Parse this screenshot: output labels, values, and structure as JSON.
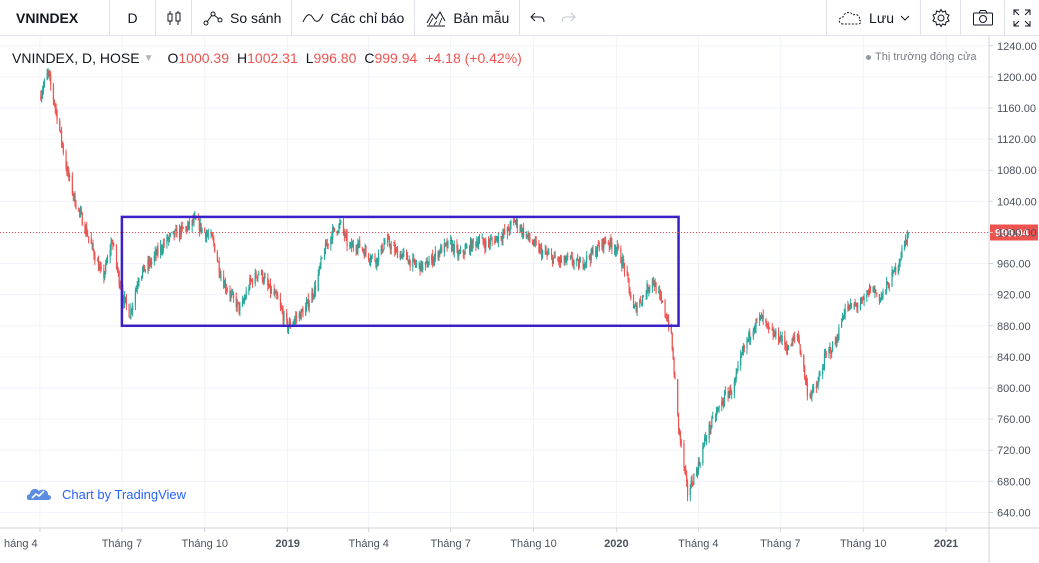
{
  "toolbar": {
    "symbol": "VNINDEX",
    "interval": "D",
    "compare": "So sánh",
    "indicators": "Các chỉ báo",
    "templates": "Bản mẫu",
    "save": "Lưu"
  },
  "legend": {
    "title": "VNINDEX, D, HOSE",
    "open_label": "O",
    "open": "1000.39",
    "high_label": "H",
    "high": "1002.31",
    "low_label": "L",
    "low": "996.80",
    "close_label": "C",
    "close": "999.94",
    "change": "+4.18 (+0.42%)"
  },
  "market_status": "Thị trường đóng cửa",
  "brand": "Chart by TradingView",
  "colors": {
    "up": "#26a69a",
    "down": "#ef5350",
    "box": "#3b20c8",
    "price_line": "#ef5350"
  },
  "chart_data": {
    "type": "candlestick",
    "title": "VNINDEX, D, HOSE",
    "y_axis_ticks": [
      1240,
      1200,
      1160,
      1120,
      1080,
      1040,
      1000,
      960,
      920,
      880,
      840,
      800,
      760,
      720,
      680,
      640
    ],
    "ylim": [
      620,
      1250
    ],
    "x_axis_labels": [
      "háng 4",
      "Tháng 7",
      "Tháng 10",
      "2019",
      "Tháng 4",
      "Tháng 7",
      "Tháng 10",
      "2020",
      "Tháng 4",
      "Tháng 7",
      "Tháng 10",
      "2021"
    ],
    "x_label_bold": [
      "2019",
      "2020",
      "2021"
    ],
    "x": [
      "2018-04-01",
      "2018-04-10",
      "2018-04-20",
      "2018-05-01",
      "2018-05-10",
      "2018-05-20",
      "2018-06-01",
      "2018-06-10",
      "2018-06-20",
      "2018-07-01",
      "2018-07-10",
      "2018-07-20",
      "2018-08-01",
      "2018-08-10",
      "2018-08-20",
      "2018-09-01",
      "2018-09-10",
      "2018-09-20",
      "2018-10-01",
      "2018-10-10",
      "2018-10-20",
      "2018-11-01",
      "2018-11-10",
      "2018-11-20",
      "2018-12-01",
      "2018-12-10",
      "2018-12-20",
      "2019-01-01",
      "2019-01-10",
      "2019-01-20",
      "2019-02-01",
      "2019-02-10",
      "2019-02-20",
      "2019-03-01",
      "2019-03-10",
      "2019-03-20",
      "2019-04-01",
      "2019-04-10",
      "2019-04-20",
      "2019-05-01",
      "2019-05-10",
      "2019-05-20",
      "2019-06-01",
      "2019-06-10",
      "2019-06-20",
      "2019-07-01",
      "2019-07-10",
      "2019-07-20",
      "2019-08-01",
      "2019-08-10",
      "2019-08-20",
      "2019-09-01",
      "2019-09-10",
      "2019-09-20",
      "2019-10-01",
      "2019-10-10",
      "2019-10-20",
      "2019-11-01",
      "2019-11-10",
      "2019-11-20",
      "2019-12-01",
      "2019-12-10",
      "2019-12-20",
      "2020-01-01",
      "2020-01-10",
      "2020-01-20",
      "2020-02-01",
      "2020-02-10",
      "2020-02-20",
      "2020-03-01",
      "2020-03-10",
      "2020-03-20",
      "2020-04-01",
      "2020-04-10",
      "2020-04-20",
      "2020-05-01",
      "2020-05-10",
      "2020-05-20",
      "2020-06-01",
      "2020-06-10",
      "2020-06-20",
      "2020-07-01",
      "2020-07-10",
      "2020-07-20",
      "2020-08-01",
      "2020-08-10",
      "2020-08-20",
      "2020-09-01",
      "2020-09-10",
      "2020-09-20",
      "2020-10-01",
      "2020-10-10",
      "2020-10-20",
      "2020-11-01",
      "2020-11-10",
      "2020-11-20"
    ],
    "close": [
      1175,
      1205,
      1150,
      1080,
      1040,
      1010,
      970,
      940,
      990,
      920,
      895,
      945,
      960,
      975,
      990,
      1000,
      1005,
      1015,
      1000,
      990,
      940,
      915,
      900,
      935,
      950,
      930,
      915,
      878,
      890,
      900,
      930,
      975,
      1000,
      1010,
      980,
      985,
      970,
      965,
      990,
      975,
      970,
      960,
      955,
      965,
      978,
      985,
      970,
      980,
      990,
      985,
      992,
      1000,
      1015,
      1000,
      985,
      975,
      968,
      962,
      965,
      958,
      968,
      978,
      990,
      980,
      955,
      900,
      920,
      940,
      910,
      878,
      750,
      665,
      700,
      740,
      765,
      790,
      800,
      845,
      880,
      890,
      870,
      865,
      850,
      870,
      790,
      800,
      840,
      860,
      900,
      905,
      910,
      930,
      915,
      940,
      965,
      1000
    ],
    "current_price_label": "999.94",
    "annotation_box": {
      "x_start": "2018-07-01",
      "x_end": "2020-03-10",
      "y_low": 880,
      "y_high": 1020
    }
  }
}
